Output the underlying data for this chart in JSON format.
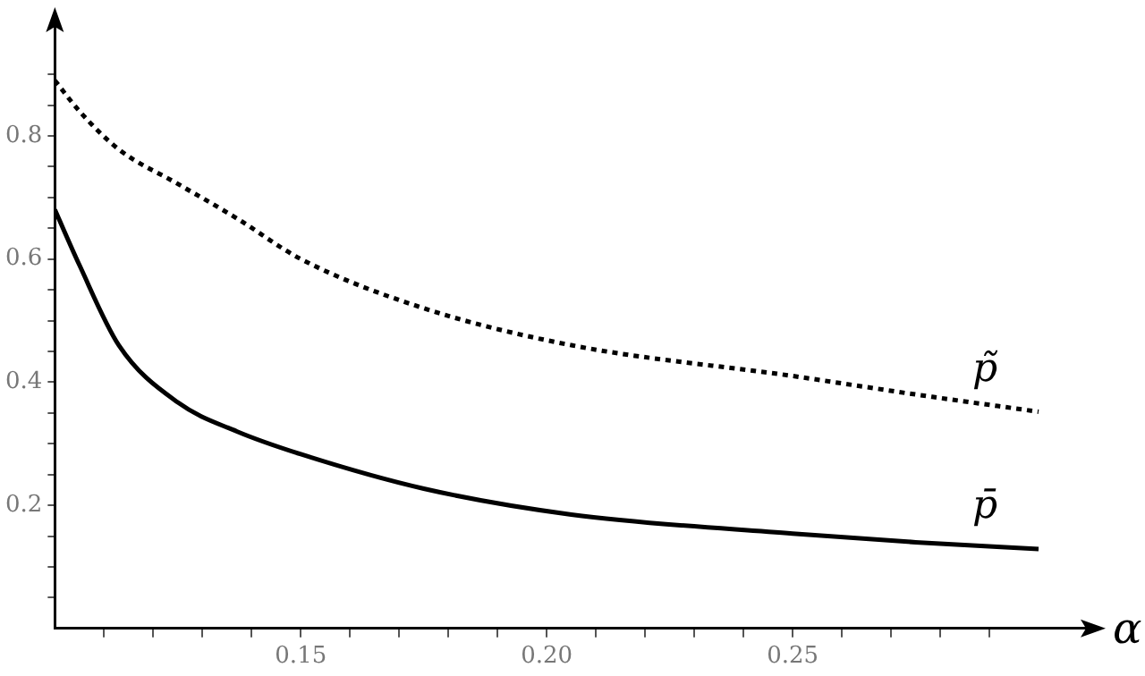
{
  "chart_data": {
    "type": "line",
    "xlabel": "α",
    "x": [
      0.1,
      0.105,
      0.113,
      0.125,
      0.137,
      0.15,
      0.175,
      0.205,
      0.25,
      0.275,
      0.3
    ],
    "series": [
      {
        "name": "p̃",
        "color": "#000000",
        "line_style": "dotted",
        "values": [
          0.89,
          0.84,
          0.778,
          0.722,
          0.666,
          0.6,
          0.52,
          0.46,
          0.41,
          0.38,
          0.352
        ]
      },
      {
        "name": "p̄",
        "color": "#000000",
        "line_style": "solid",
        "values": [
          0.68,
          0.59,
          0.46,
          0.367,
          0.32,
          0.283,
          0.227,
          0.185,
          0.154,
          0.14,
          0.129
        ]
      }
    ],
    "xlim": [
      0.1,
      0.31
    ],
    "ylim": [
      0,
      0.98
    ],
    "xticks": [
      {
        "value": 0.11,
        "label": null
      },
      {
        "value": 0.12,
        "label": null
      },
      {
        "value": 0.13,
        "label": null
      },
      {
        "value": 0.14,
        "label": null
      },
      {
        "value": 0.15,
        "label": "0.15"
      },
      {
        "value": 0.16,
        "label": null
      },
      {
        "value": 0.17,
        "label": null
      },
      {
        "value": 0.18,
        "label": null
      },
      {
        "value": 0.19,
        "label": null
      },
      {
        "value": 0.2,
        "label": "0.20"
      },
      {
        "value": 0.21,
        "label": null
      },
      {
        "value": 0.22,
        "label": null
      },
      {
        "value": 0.23,
        "label": null
      },
      {
        "value": 0.24,
        "label": null
      },
      {
        "value": 0.25,
        "label": "0.25"
      },
      {
        "value": 0.26,
        "label": null
      },
      {
        "value": 0.27,
        "label": null
      },
      {
        "value": 0.28,
        "label": null
      },
      {
        "value": 0.29,
        "label": null
      }
    ],
    "yticks": [
      {
        "value": 0.05,
        "label": null
      },
      {
        "value": 0.1,
        "label": null
      },
      {
        "value": 0.15,
        "label": null
      },
      0.2,
      {
        "value": 0.25,
        "label": null
      },
      {
        "value": 0.3,
        "label": null
      },
      {
        "value": 0.35,
        "label": null
      },
      0.4,
      {
        "value": 0.45,
        "label": null
      },
      {
        "value": 0.5,
        "label": null
      },
      {
        "value": 0.55,
        "label": null
      },
      0.6,
      {
        "value": 0.65,
        "label": null
      },
      {
        "value": 0.7,
        "label": null
      },
      {
        "value": 0.75,
        "label": null
      },
      0.8,
      {
        "value": 0.85,
        "label": null
      },
      {
        "value": 0.9,
        "label": null
      }
    ],
    "grid": false,
    "legend": false,
    "marker": "none"
  }
}
